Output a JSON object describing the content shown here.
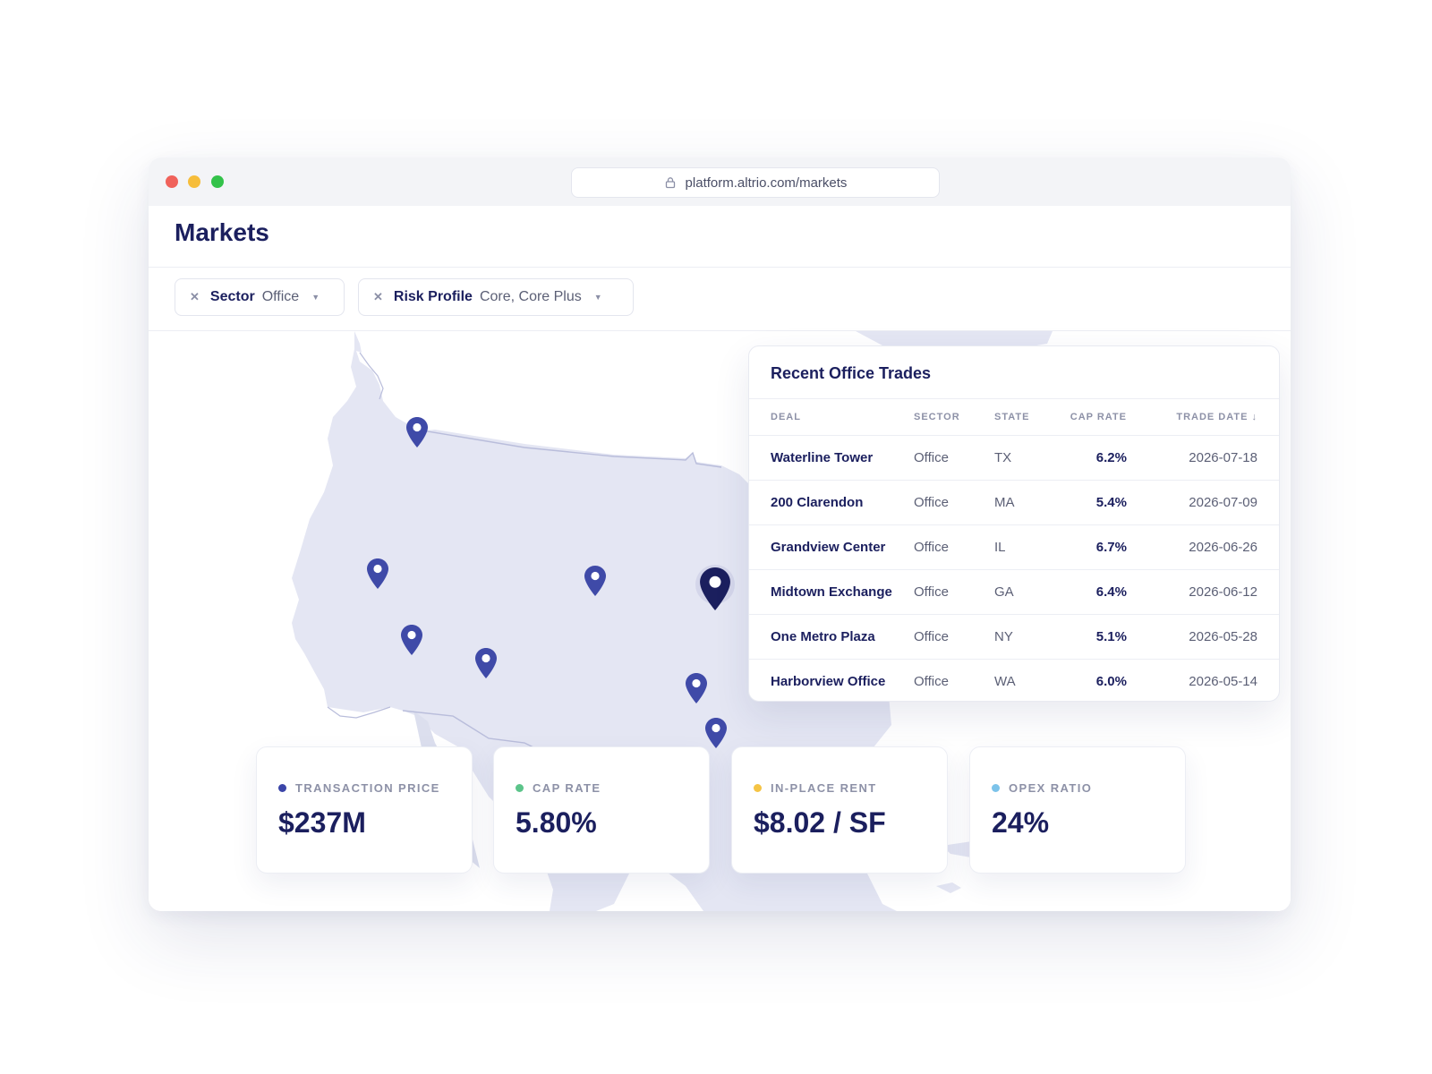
{
  "browser": {
    "url": "platform.altrio.com/markets"
  },
  "page": {
    "title": "Markets"
  },
  "filters": [
    {
      "key": "Sector",
      "value": "Office"
    },
    {
      "key": "Risk Profile",
      "value": "Core, Core Plus"
    }
  ],
  "trades_panel": {
    "title": "Recent Office Trades",
    "columns": [
      "DEAL",
      "SECTOR",
      "STATE",
      "CAP RATE",
      "TRADE DATE ↓"
    ],
    "rows": [
      {
        "deal": "Waterline Tower",
        "sector": "Office",
        "state": "TX",
        "cap_rate": "6.2%",
        "trade_date": "2026-07-18"
      },
      {
        "deal": "200 Clarendon",
        "sector": "Office",
        "state": "MA",
        "cap_rate": "5.4%",
        "trade_date": "2026-07-09"
      },
      {
        "deal": "Grandview Center",
        "sector": "Office",
        "state": "IL",
        "cap_rate": "6.7%",
        "trade_date": "2026-06-26"
      },
      {
        "deal": "Midtown Exchange",
        "sector": "Office",
        "state": "GA",
        "cap_rate": "6.4%",
        "trade_date": "2026-06-12"
      },
      {
        "deal": "One Metro Plaza",
        "sector": "Office",
        "state": "NY",
        "cap_rate": "5.1%",
        "trade_date": "2026-05-28"
      },
      {
        "deal": "Harborview Office",
        "sector": "Office",
        "state": "WA",
        "cap_rate": "6.0%",
        "trade_date": "2026-05-14"
      }
    ]
  },
  "kpis": [
    {
      "label": "TRANSACTION PRICE",
      "value": "$237M",
      "color": "#3b45a8"
    },
    {
      "label": "CAP RATE",
      "value": "5.80%",
      "color": "#5cc48a"
    },
    {
      "label": "IN-PLACE RENT",
      "value": "$8.02 / SF",
      "color": "#f5c445"
    },
    {
      "label": "OPEX RATIO",
      "value": "24%",
      "color": "#7cc3ea"
    }
  ],
  "map": {
    "land_color": "#e4e6f3",
    "border_color": "#b9bddb",
    "pin_color": "#3f4aa8",
    "selected_pin_color": "#1b1f5e"
  },
  "icons": {
    "lock": "lock-icon",
    "filter_remove": "close-icon",
    "filter_caret": "chevron-down-icon",
    "map_pin": "map-pin-icon",
    "sort": "arrow-down-icon"
  }
}
